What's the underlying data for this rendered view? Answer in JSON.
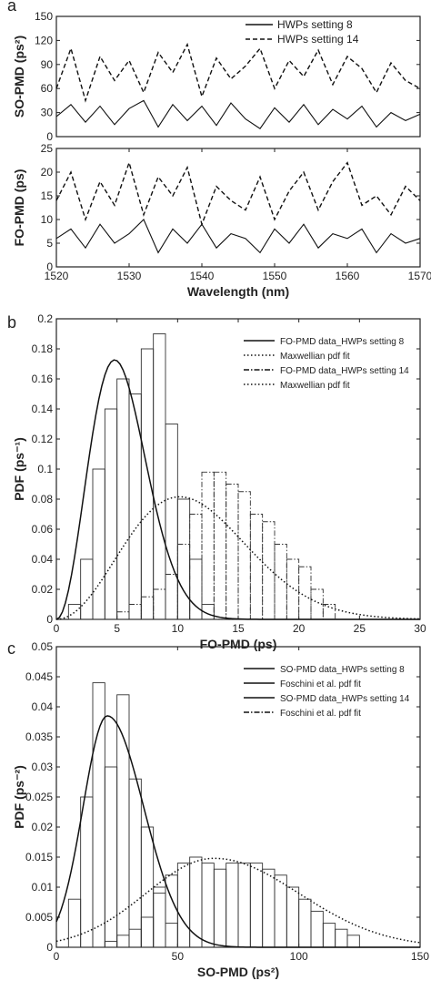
{
  "chart_data": [
    {
      "panel": "a",
      "type": "line",
      "subplot": "top",
      "ylabel": "SO-PMD (ps²)",
      "xlim": [
        1520,
        1570
      ],
      "ylim": [
        0,
        150
      ],
      "yticks": [
        0,
        30,
        60,
        90,
        120,
        150
      ],
      "grid": false,
      "legend_position": "top-right",
      "series": [
        {
          "name": "HWPs setting 8",
          "style": "solid",
          "x": [
            1520,
            1522,
            1524,
            1526,
            1528,
            1530,
            1532,
            1534,
            1536,
            1538,
            1540,
            1542,
            1544,
            1546,
            1548,
            1550,
            1552,
            1554,
            1556,
            1558,
            1560,
            1562,
            1564,
            1566,
            1568,
            1570
          ],
          "values": [
            25,
            40,
            18,
            38,
            15,
            35,
            45,
            12,
            40,
            20,
            38,
            14,
            42,
            22,
            10,
            36,
            18,
            40,
            15,
            34,
            22,
            38,
            12,
            30,
            20,
            28
          ]
        },
        {
          "name": "HWPs setting 14",
          "style": "dashed",
          "x": [
            1520,
            1522,
            1524,
            1526,
            1528,
            1530,
            1532,
            1534,
            1536,
            1538,
            1540,
            1542,
            1544,
            1546,
            1548,
            1550,
            1552,
            1554,
            1556,
            1558,
            1560,
            1562,
            1564,
            1566,
            1568,
            1570
          ],
          "values": [
            60,
            110,
            45,
            100,
            70,
            95,
            55,
            105,
            80,
            115,
            50,
            98,
            72,
            88,
            110,
            60,
            95,
            75,
            108,
            65,
            100,
            85,
            55,
            92,
            70,
            60
          ]
        }
      ]
    },
    {
      "panel": "a",
      "type": "line",
      "subplot": "bottom",
      "ylabel": "FO-PMD (ps)",
      "xlabel": "Wavelength (nm)",
      "xlim": [
        1520,
        1570
      ],
      "ylim": [
        0,
        25
      ],
      "xticks": [
        1520,
        1530,
        1540,
        1550,
        1560,
        1570
      ],
      "yticks": [
        0,
        5,
        10,
        15,
        20,
        25
      ],
      "grid": false,
      "series": [
        {
          "name": "HWPs setting 8",
          "style": "solid",
          "x": [
            1520,
            1522,
            1524,
            1526,
            1528,
            1530,
            1532,
            1534,
            1536,
            1538,
            1540,
            1542,
            1544,
            1546,
            1548,
            1550,
            1552,
            1554,
            1556,
            1558,
            1560,
            1562,
            1564,
            1566,
            1568,
            1570
          ],
          "values": [
            6,
            8,
            4,
            9,
            5,
            7,
            10,
            3,
            8,
            5,
            9,
            4,
            7,
            6,
            3,
            8,
            5,
            9,
            4,
            7,
            6,
            8,
            3,
            7,
            5,
            6
          ]
        },
        {
          "name": "HWPs setting 14",
          "style": "dashed",
          "x": [
            1520,
            1522,
            1524,
            1526,
            1528,
            1530,
            1532,
            1534,
            1536,
            1538,
            1540,
            1542,
            1544,
            1546,
            1548,
            1550,
            1552,
            1554,
            1556,
            1558,
            1560,
            1562,
            1564,
            1566,
            1568,
            1570
          ],
          "values": [
            14,
            20,
            10,
            18,
            13,
            22,
            11,
            19,
            15,
            21,
            9,
            17,
            14,
            12,
            19,
            10,
            16,
            20,
            12,
            18,
            22,
            13,
            15,
            11,
            17,
            14
          ]
        }
      ]
    },
    {
      "panel": "b",
      "type": "bar",
      "ylabel": "PDF (ps⁻¹)",
      "xlabel": "FO-PMD (ps)",
      "xlim": [
        0,
        30
      ],
      "ylim": [
        0,
        0.2
      ],
      "xticks": [
        0,
        5,
        10,
        15,
        20,
        25,
        30
      ],
      "yticks": [
        0,
        0.02,
        0.04,
        0.06,
        0.08,
        0.1,
        0.12,
        0.14,
        0.16,
        0.18,
        0.2
      ],
      "bin_width": 1,
      "grid": false,
      "legend_position": "top-right",
      "legend": [
        "FO-PMD data_HWPs setting 8",
        "Maxwellian pdf fit",
        "FO-PMD data_HWPs setting 14",
        "Maxwellian pdf fit"
      ],
      "histograms": [
        {
          "name": "FO-PMD data_HWPs setting 8",
          "bin_edges": [
            1,
            2,
            3,
            4,
            5,
            6,
            7,
            8,
            9,
            10,
            11,
            12,
            13
          ],
          "values": [
            0.01,
            0.04,
            0.1,
            0.14,
            0.16,
            0.15,
            0.18,
            0.19,
            0.13,
            0.08,
            0.04,
            0.01
          ]
        },
        {
          "name": "FO-PMD data_HWPs setting 14",
          "bin_edges": [
            5,
            6,
            7,
            8,
            9,
            10,
            11,
            12,
            13,
            14,
            15,
            16,
            17,
            18,
            19,
            20,
            21,
            22,
            23
          ],
          "values": [
            0.005,
            0.01,
            0.015,
            0.02,
            0.03,
            0.05,
            0.07,
            0.098,
            0.098,
            0.09,
            0.085,
            0.07,
            0.065,
            0.05,
            0.04,
            0.035,
            0.02,
            0.01
          ]
        }
      ],
      "curves": [
        {
          "name": "Maxwellian pdf fit",
          "style": "solid",
          "a": 3.4
        },
        {
          "name": "Maxwellian pdf fit",
          "style": "dotted",
          "a": 7.2
        }
      ]
    },
    {
      "panel": "c",
      "type": "bar",
      "ylabel": "PDF (ps⁻²)",
      "xlabel": "SO-PMD (ps²)",
      "xlim": [
        0,
        150
      ],
      "ylim": [
        0,
        0.05
      ],
      "xticks": [
        0,
        50,
        100,
        150
      ],
      "yticks": [
        0,
        0.005,
        0.01,
        0.015,
        0.02,
        0.025,
        0.03,
        0.035,
        0.04,
        0.045,
        0.05
      ],
      "grid": false,
      "legend_position": "top-right",
      "legend": [
        "SO-PMD data_HWPs setting 8",
        "Foschini et al. pdf fit",
        "SO-PMD data_HWPs setting 14",
        "Foschini et al. pdf fit"
      ],
      "histograms": [
        {
          "name": "SO-PMD data_HWPs setting 8",
          "bin_edges": [
            5,
            10,
            15,
            20,
            25,
            30,
            35,
            40,
            45,
            50
          ],
          "values": [
            0.008,
            0.025,
            0.044,
            0.03,
            0.042,
            0.028,
            0.02,
            0.01,
            0.004
          ]
        },
        {
          "name": "SO-PMD data_HWPs setting 14",
          "bin_edges": [
            20,
            25,
            30,
            35,
            40,
            45,
            50,
            55,
            60,
            65,
            70,
            75,
            80,
            85,
            90,
            95,
            100,
            105,
            110,
            115,
            120,
            125
          ],
          "values": [
            0.001,
            0.002,
            0.003,
            0.005,
            0.009,
            0.012,
            0.014,
            0.015,
            0.014,
            0.013,
            0.014,
            0.014,
            0.014,
            0.013,
            0.012,
            0.01,
            0.008,
            0.006,
            0.004,
            0.003,
            0.002
          ]
        }
      ],
      "curves": [
        {
          "name": "Foschini et al. pdf fit",
          "style": "solid",
          "peak_x": 21,
          "peak_y": 0.0385,
          "sigma_left": 10,
          "sigma_right": 15
        },
        {
          "name": "Foschini et al. pdf fit",
          "style": "dotted",
          "peak_x": 65,
          "peak_y": 0.0148,
          "sigma_left": 28,
          "sigma_right": 35
        }
      ]
    }
  ]
}
